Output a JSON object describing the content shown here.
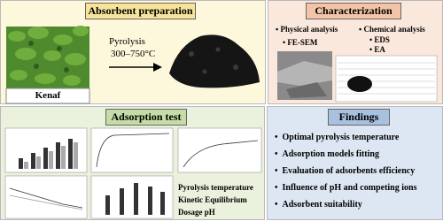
{
  "panels": {
    "preparation": {
      "title": "Absorbent preparation",
      "plant_label": "Kenaf",
      "process": "Pyrolysis",
      "temperature": "300–750°C"
    },
    "characterization": {
      "title": "Characterization",
      "physical": {
        "heading": "Physical analysis",
        "methods": [
          "FE-SEM"
        ]
      },
      "chemical": {
        "heading": "Chemical analysis",
        "methods": [
          "EDS",
          "EA"
        ]
      }
    },
    "adsorption": {
      "title": "Adsorption test",
      "factors": [
        "Pyrolysis temperature",
        "Kinetic Equilibrium",
        "Dosage pH"
      ]
    },
    "findings": {
      "title": "Findings",
      "items": [
        "Optimal pyrolysis temperature",
        "Adsorption models fitting",
        "Evaluation of adsorbents efficiency",
        "Influence of pH and competing ions",
        "Adsorbent suitability"
      ]
    }
  }
}
